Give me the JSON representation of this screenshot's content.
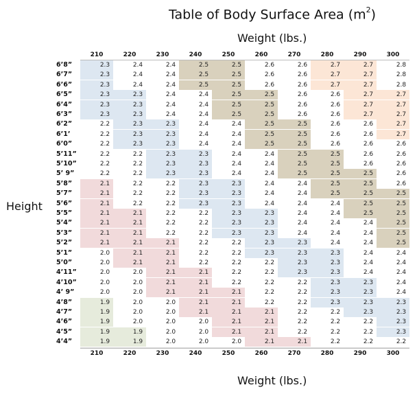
{
  "title": "Table of Body Surface Area (m",
  "title_sup": "2",
  "title_close": ")",
  "weight_label_top": "Weight (lbs.)",
  "weight_label_bottom": "Weight (lbs.)",
  "height_label": "Height",
  "zone_colors": {
    "blue": "#dde7f1",
    "tan": "#d9d1bd",
    "peach": "#fce6d6",
    "pink": "#f1dadb",
    "green": "#e6ebdc",
    "none": "#ffffff"
  },
  "chart_data": {
    "type": "table",
    "title": "Table of Body Surface Area (m2)",
    "xlabel": "Weight (lbs.)",
    "ylabel": "Height",
    "columns": [
      "210",
      "220",
      "230",
      "240",
      "250",
      "260",
      "270",
      "280",
      "290",
      "300"
    ],
    "rows": [
      {
        "height": "6’8”",
        "values": [
          2.3,
          2.4,
          2.4,
          2.5,
          2.5,
          2.6,
          2.6,
          2.7,
          2.7,
          2.8
        ],
        "zones": [
          "blue",
          "none",
          "none",
          "tan",
          "tan",
          "none",
          "none",
          "peach",
          "peach",
          "none"
        ]
      },
      {
        "height": "6’7”",
        "values": [
          2.3,
          2.4,
          2.4,
          2.5,
          2.5,
          2.6,
          2.6,
          2.7,
          2.7,
          2.8
        ],
        "zones": [
          "blue",
          "none",
          "none",
          "tan",
          "tan",
          "none",
          "none",
          "peach",
          "peach",
          "none"
        ]
      },
      {
        "height": "6’6”",
        "values": [
          2.3,
          2.4,
          2.4,
          2.5,
          2.5,
          2.6,
          2.6,
          2.7,
          2.7,
          2.8
        ],
        "zones": [
          "blue",
          "none",
          "none",
          "tan",
          "tan",
          "none",
          "none",
          "peach",
          "peach",
          "none"
        ]
      },
      {
        "height": "6’5”",
        "values": [
          2.3,
          2.3,
          2.4,
          2.4,
          2.5,
          2.5,
          2.6,
          2.6,
          2.7,
          2.7
        ],
        "zones": [
          "blue",
          "blue",
          "none",
          "none",
          "tan",
          "tan",
          "none",
          "none",
          "peach",
          "peach"
        ]
      },
      {
        "height": "6’4”",
        "values": [
          2.3,
          2.3,
          2.4,
          2.4,
          2.5,
          2.5,
          2.6,
          2.6,
          2.7,
          2.7
        ],
        "zones": [
          "blue",
          "blue",
          "none",
          "none",
          "tan",
          "tan",
          "none",
          "none",
          "peach",
          "peach"
        ]
      },
      {
        "height": "6’3”",
        "values": [
          2.3,
          2.3,
          2.4,
          2.4,
          2.5,
          2.5,
          2.6,
          2.6,
          2.7,
          2.7
        ],
        "zones": [
          "blue",
          "blue",
          "none",
          "none",
          "tan",
          "tan",
          "none",
          "none",
          "peach",
          "peach"
        ]
      },
      {
        "height": "6’2”",
        "values": [
          2.2,
          2.3,
          2.3,
          2.4,
          2.4,
          2.5,
          2.5,
          2.6,
          2.6,
          2.7
        ],
        "zones": [
          "none",
          "blue",
          "blue",
          "none",
          "none",
          "tan",
          "tan",
          "none",
          "none",
          "peach"
        ]
      },
      {
        "height": "6’1’",
        "values": [
          2.2,
          2.3,
          2.3,
          2.4,
          2.4,
          2.5,
          2.5,
          2.6,
          2.6,
          2.7
        ],
        "zones": [
          "none",
          "blue",
          "blue",
          "none",
          "none",
          "tan",
          "tan",
          "none",
          "none",
          "peach"
        ]
      },
      {
        "height": "6’0”",
        "values": [
          2.2,
          2.3,
          2.3,
          2.4,
          2.4,
          2.5,
          2.5,
          2.6,
          2.6,
          2.6
        ],
        "zones": [
          "none",
          "blue",
          "blue",
          "none",
          "none",
          "tan",
          "tan",
          "none",
          "none",
          "none"
        ]
      },
      {
        "height": "5’11”",
        "values": [
          2.2,
          2.2,
          2.3,
          2.3,
          2.4,
          2.4,
          2.5,
          2.5,
          2.6,
          2.6
        ],
        "zones": [
          "none",
          "none",
          "blue",
          "blue",
          "none",
          "none",
          "tan",
          "tan",
          "none",
          "none"
        ]
      },
      {
        "height": "5’10”",
        "values": [
          2.2,
          2.2,
          2.3,
          2.3,
          2.4,
          2.4,
          2.5,
          2.5,
          2.6,
          2.6
        ],
        "zones": [
          "none",
          "none",
          "blue",
          "blue",
          "none",
          "none",
          "tan",
          "tan",
          "none",
          "none"
        ]
      },
      {
        "height": "5’ 9”",
        "values": [
          2.2,
          2.2,
          2.3,
          2.3,
          2.4,
          2.4,
          2.5,
          2.5,
          2.5,
          2.6
        ],
        "zones": [
          "none",
          "none",
          "blue",
          "blue",
          "none",
          "none",
          "tan",
          "tan",
          "tan",
          "none"
        ]
      },
      {
        "height": "5’8”",
        "values": [
          2.1,
          2.2,
          2.2,
          2.3,
          2.3,
          2.4,
          2.4,
          2.5,
          2.5,
          2.6
        ],
        "zones": [
          "pink",
          "none",
          "none",
          "blue",
          "blue",
          "none",
          "none",
          "tan",
          "tan",
          "none"
        ]
      },
      {
        "height": "5’7”",
        "values": [
          2.1,
          2.2,
          2.2,
          2.3,
          2.3,
          2.4,
          2.4,
          2.5,
          2.5,
          2.5
        ],
        "zones": [
          "pink",
          "none",
          "none",
          "blue",
          "blue",
          "none",
          "none",
          "tan",
          "tan",
          "tan"
        ]
      },
      {
        "height": "5’6”",
        "values": [
          2.1,
          2.2,
          2.2,
          2.3,
          2.3,
          2.4,
          2.4,
          2.4,
          2.5,
          2.5
        ],
        "zones": [
          "pink",
          "none",
          "none",
          "blue",
          "blue",
          "none",
          "none",
          "none",
          "tan",
          "tan"
        ]
      },
      {
        "height": "5’5”",
        "values": [
          2.1,
          2.1,
          2.2,
          2.2,
          2.3,
          2.3,
          2.4,
          2.4,
          2.5,
          2.5
        ],
        "zones": [
          "pink",
          "pink",
          "none",
          "none",
          "blue",
          "blue",
          "none",
          "none",
          "tan",
          "tan"
        ]
      },
      {
        "height": "5’4”",
        "values": [
          2.1,
          2.1,
          2.2,
          2.2,
          2.3,
          2.3,
          2.4,
          2.4,
          2.4,
          2.5
        ],
        "zones": [
          "pink",
          "pink",
          "none",
          "none",
          "blue",
          "blue",
          "none",
          "none",
          "none",
          "tan"
        ]
      },
      {
        "height": "5’3”",
        "values": [
          2.1,
          2.1,
          2.2,
          2.2,
          2.3,
          2.3,
          2.4,
          2.4,
          2.4,
          2.5
        ],
        "zones": [
          "pink",
          "pink",
          "none",
          "none",
          "blue",
          "blue",
          "none",
          "none",
          "none",
          "tan"
        ]
      },
      {
        "height": "5’2”",
        "values": [
          2.1,
          2.1,
          2.1,
          2.2,
          2.2,
          2.3,
          2.3,
          2.4,
          2.4,
          2.5
        ],
        "zones": [
          "pink",
          "pink",
          "pink",
          "none",
          "none",
          "blue",
          "blue",
          "none",
          "none",
          "tan"
        ]
      },
      {
        "height": "5’1”",
        "values": [
          2.0,
          2.1,
          2.1,
          2.2,
          2.2,
          2.3,
          2.3,
          2.3,
          2.4,
          2.4
        ],
        "zones": [
          "none",
          "pink",
          "pink",
          "none",
          "none",
          "blue",
          "blue",
          "blue",
          "none",
          "none"
        ]
      },
      {
        "height": "5’0”",
        "values": [
          2.0,
          2.1,
          2.1,
          2.2,
          2.2,
          2.2,
          2.3,
          2.3,
          2.4,
          2.4
        ],
        "zones": [
          "none",
          "pink",
          "pink",
          "none",
          "none",
          "none",
          "blue",
          "blue",
          "none",
          "none"
        ]
      },
      {
        "height": "4’11”",
        "values": [
          2.0,
          2.0,
          2.1,
          2.1,
          2.2,
          2.2,
          2.3,
          2.3,
          2.4,
          2.4
        ],
        "zones": [
          "none",
          "none",
          "pink",
          "pink",
          "none",
          "none",
          "blue",
          "blue",
          "none",
          "none"
        ]
      },
      {
        "height": "4’10”",
        "values": [
          2.0,
          2.0,
          2.1,
          2.1,
          2.2,
          2.2,
          2.2,
          2.3,
          2.3,
          2.4
        ],
        "zones": [
          "none",
          "none",
          "pink",
          "pink",
          "none",
          "none",
          "none",
          "blue",
          "blue",
          "none"
        ]
      },
      {
        "height": "4’ 9”",
        "values": [
          2.0,
          2.0,
          2.1,
          2.1,
          2.1,
          2.2,
          2.2,
          2.3,
          2.3,
          2.4
        ],
        "zones": [
          "none",
          "none",
          "pink",
          "pink",
          "pink",
          "none",
          "none",
          "blue",
          "blue",
          "none"
        ]
      },
      {
        "height": "4’8”",
        "values": [
          1.9,
          2.0,
          2.0,
          2.1,
          2.1,
          2.2,
          2.2,
          2.3,
          2.3,
          2.3
        ],
        "zones": [
          "green",
          "none",
          "none",
          "pink",
          "pink",
          "none",
          "none",
          "blue",
          "blue",
          "blue"
        ]
      },
      {
        "height": "4’7”",
        "values": [
          1.9,
          2.0,
          2.0,
          2.1,
          2.1,
          2.1,
          2.2,
          2.2,
          2.3,
          2.3
        ],
        "zones": [
          "green",
          "none",
          "none",
          "pink",
          "pink",
          "pink",
          "none",
          "none",
          "blue",
          "blue"
        ]
      },
      {
        "height": "4’6”",
        "values": [
          1.9,
          2.0,
          2.0,
          2.0,
          2.1,
          2.1,
          2.2,
          2.2,
          2.2,
          2.3
        ],
        "zones": [
          "green",
          "none",
          "none",
          "none",
          "pink",
          "pink",
          "none",
          "none",
          "none",
          "blue"
        ]
      },
      {
        "height": "4’5”",
        "values": [
          1.9,
          1.9,
          2.0,
          2.0,
          2.1,
          2.1,
          2.2,
          2.2,
          2.2,
          2.3
        ],
        "zones": [
          "green",
          "green",
          "none",
          "none",
          "pink",
          "pink",
          "none",
          "none",
          "none",
          "blue"
        ]
      },
      {
        "height": "4’4”",
        "values": [
          1.9,
          1.9,
          2.0,
          2.0,
          2.0,
          2.1,
          2.1,
          2.2,
          2.2,
          2.2
        ],
        "zones": [
          "green",
          "green",
          "none",
          "none",
          "none",
          "pink",
          "pink",
          "none",
          "none",
          "none"
        ]
      }
    ]
  }
}
